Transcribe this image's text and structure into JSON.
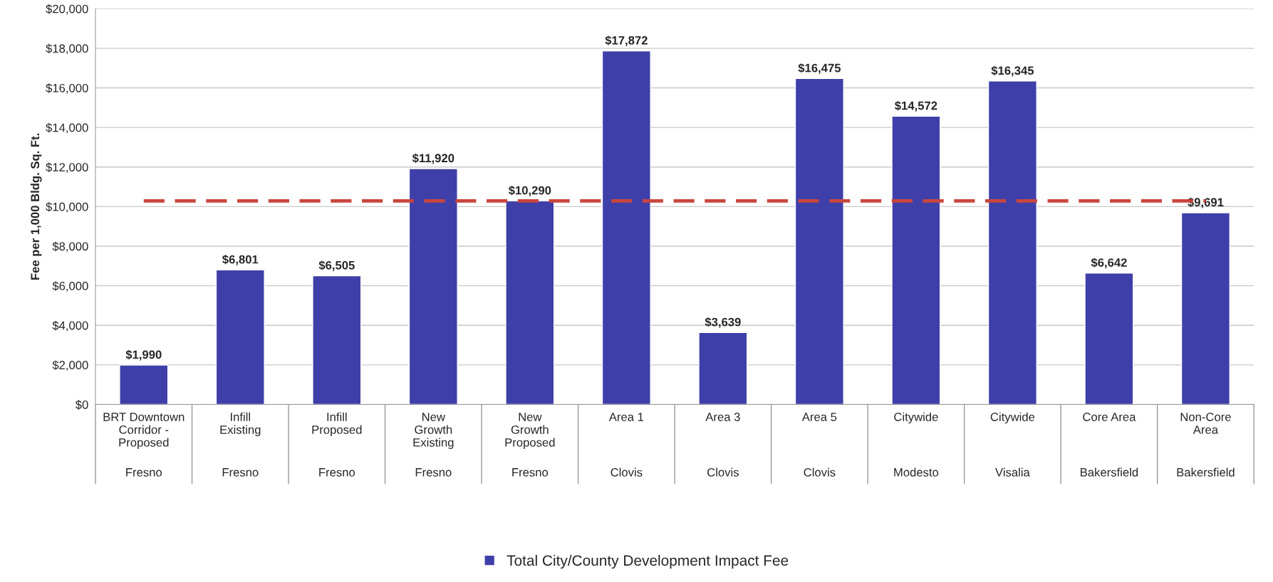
{
  "chart_data": {
    "type": "bar",
    "categories": [
      "BRT Downtown\nCorridor -\nProposed\nFresno",
      "Infill\nExisting\nFresno",
      "Infill\nProposed\nFresno",
      "New\nGrowth\nExisting\nFresno",
      "New\nGrowth\nProposed\nFresno",
      "Area 1\nClovis",
      "Area 3\nClovis",
      "Area 5\nClovis",
      "Citywide\nModesto",
      "Citywide\nVisalia",
      "Core Area\nBakersfield",
      "Non-Core\nArea\nBakersfield"
    ],
    "series": [
      {
        "name": "Total City/County Development Impact Fee",
        "color": "#3f3fa9",
        "values": [
          1990,
          6801,
          6505,
          11920,
          10290,
          17872,
          3639,
          16475,
          14572,
          16345,
          6642,
          9691
        ],
        "value_labels": [
          "$1,990",
          "$6,801",
          "$6,505",
          "$11,920",
          "$10,290",
          "$17,872",
          "$3,639",
          "$16,475",
          "$14,572",
          "$16,345",
          "$6,642",
          "$9,691"
        ]
      }
    ],
    "ylabel": "Fee per 1,000 Bldg. Sq. Ft.",
    "ylim": [
      0,
      20000
    ],
    "yticks": [
      {
        "value": 0,
        "label": "$0"
      },
      {
        "value": 2000,
        "label": "$2,000"
      },
      {
        "value": 4000,
        "label": "$4,000"
      },
      {
        "value": 6000,
        "label": "$6,000"
      },
      {
        "value": 8000,
        "label": "$8,000"
      },
      {
        "value": 10000,
        "label": "$10,000"
      },
      {
        "value": 12000,
        "label": "$12,000"
      },
      {
        "value": 14000,
        "label": "$14,000"
      },
      {
        "value": 16000,
        "label": "$16,000"
      },
      {
        "value": 18000,
        "label": "$18,000"
      },
      {
        "value": 20000,
        "label": "$20,000"
      }
    ],
    "ref_lines": [
      {
        "axis": "y",
        "value": 10290,
        "color": "#c9463d",
        "line_style": "dashed"
      }
    ],
    "grid": "y",
    "legend": "bottom"
  }
}
